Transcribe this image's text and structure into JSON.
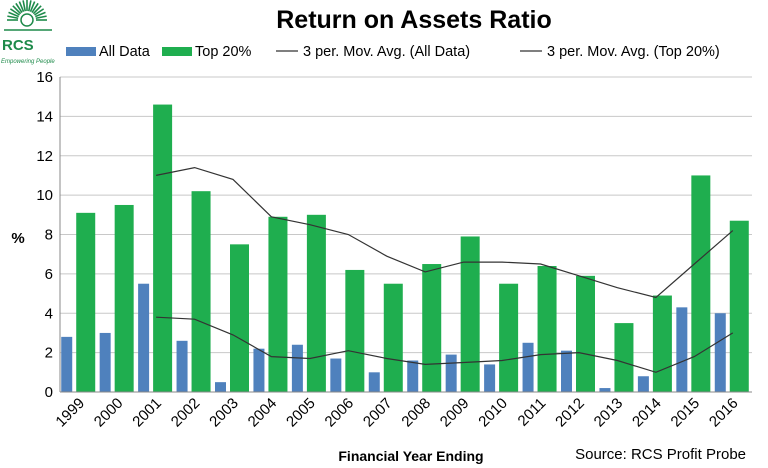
{
  "logo": {
    "text": "RCS",
    "tagline": "Empowering People",
    "color": "#1e8a4a"
  },
  "chart_data": {
    "type": "bar",
    "title": "Return on Assets Ratio",
    "xlabel": "Financial Year Ending",
    "ylabel": "%",
    "source": "Source: RCS Profit Probe",
    "ylim": [
      0,
      16
    ],
    "yticks": [
      "0",
      "2",
      "4",
      "6",
      "8",
      "10",
      "12",
      "14",
      "16"
    ],
    "grid": true,
    "legend_position": "top",
    "categories": [
      "1999",
      "2000",
      "2001",
      "2002",
      "2003",
      "2004",
      "2005",
      "2006",
      "2007",
      "2008",
      "2009",
      "2010",
      "2011",
      "2012",
      "2013",
      "2014",
      "2015",
      "2016"
    ],
    "series": [
      {
        "name": "All Data",
        "kind": "bar",
        "color": "#4f81bd",
        "values": [
          2.8,
          3.0,
          5.5,
          2.6,
          0.5,
          2.2,
          2.4,
          1.7,
          1.0,
          1.6,
          1.9,
          1.4,
          2.5,
          2.1,
          0.2,
          0.8,
          4.3,
          4.0
        ]
      },
      {
        "name": "Top 20%",
        "kind": "bar",
        "color": "#1fae4f",
        "values": [
          9.1,
          9.5,
          14.6,
          10.2,
          7.5,
          8.9,
          9.0,
          6.2,
          5.5,
          6.5,
          7.9,
          5.5,
          6.4,
          5.9,
          3.5,
          4.9,
          11.0,
          8.7
        ]
      },
      {
        "name": "3 per. Mov. Avg. (All Data)",
        "kind": "line",
        "color": "#333333",
        "values": [
          null,
          null,
          3.8,
          3.7,
          2.9,
          1.8,
          1.7,
          2.1,
          1.7,
          1.4,
          1.5,
          1.6,
          1.9,
          2.0,
          1.6,
          1.0,
          1.8,
          3.0
        ]
      },
      {
        "name": "3 per. Mov. Avg. (Top 20%)",
        "kind": "line",
        "color": "#333333",
        "values": [
          null,
          null,
          11.0,
          11.4,
          10.8,
          8.9,
          8.5,
          8.0,
          6.9,
          6.1,
          6.6,
          6.6,
          6.5,
          5.9,
          5.3,
          4.8,
          6.5,
          8.2
        ]
      }
    ]
  }
}
